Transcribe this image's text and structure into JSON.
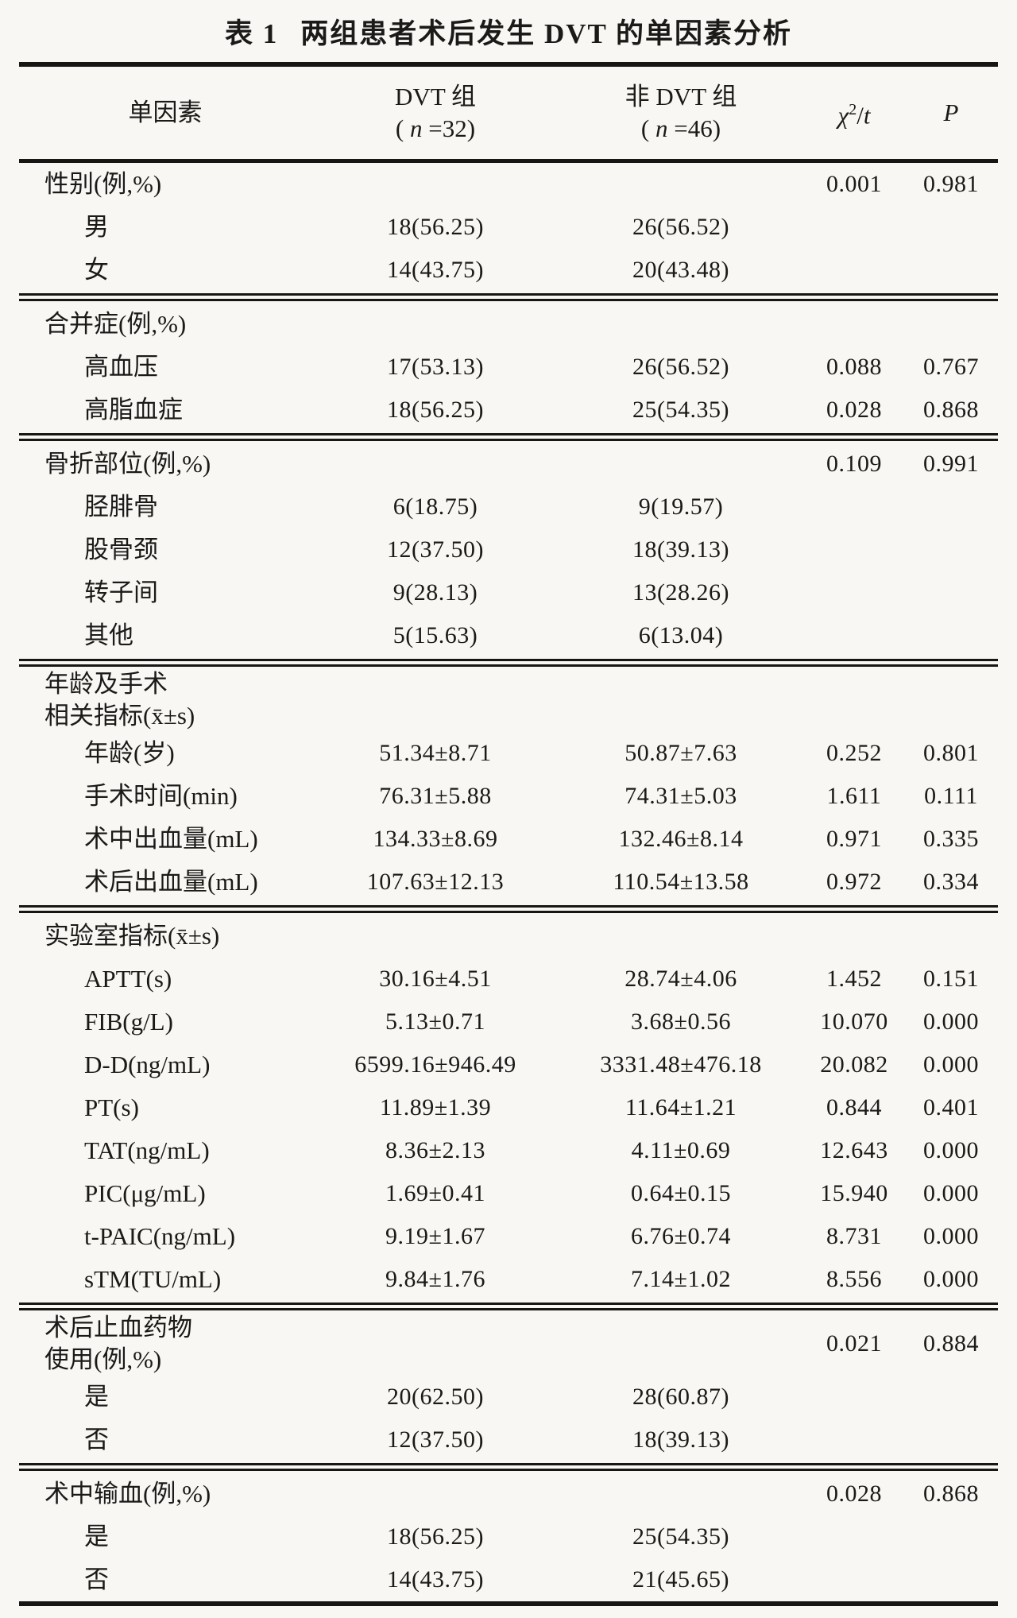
{
  "document": {
    "background": "#f8f7f4",
    "text_color": "#1b1a18",
    "rule_color": "#171614"
  },
  "table": {
    "title": {
      "tag": "表 1",
      "text": "两组患者术后发生 DVT 的单因素分析"
    },
    "header": {
      "factor": "单因素",
      "dvt_group": {
        "line1": "DVT 组",
        "sub": [
          "( ",
          "n",
          " =32)"
        ]
      },
      "non_dvt_group": {
        "line1": "非 DVT 组",
        "sub": [
          "( ",
          "n",
          " =46)"
        ]
      },
      "stat": {
        "chi": "χ",
        "sup": "2",
        "slash": "/",
        "t": "t"
      },
      "p": "P"
    },
    "sections": [
      {
        "rows": [
          {
            "label": "性别(例,%)",
            "stat": "0.001",
            "p": "0.981"
          },
          {
            "label": "男",
            "indent": true,
            "dvt": "18(56.25)",
            "non": "26(56.52)"
          },
          {
            "label": "女",
            "indent": true,
            "dvt": "14(43.75)",
            "non": "20(43.48)"
          }
        ]
      },
      {
        "rows": [
          {
            "label": "合并症(例,%)"
          },
          {
            "label": "高血压",
            "indent": true,
            "dvt": "17(53.13)",
            "non": "26(56.52)",
            "stat": "0.088",
            "p": "0.767"
          },
          {
            "label": "高脂血症",
            "indent": true,
            "dvt": "18(56.25)",
            "non": "25(54.35)",
            "stat": "0.028",
            "p": "0.868"
          }
        ]
      },
      {
        "rows": [
          {
            "label": "骨折部位(例,%)",
            "stat": "0.109",
            "p": "0.991"
          },
          {
            "label": "胫腓骨",
            "indent": true,
            "dvt": "6(18.75)",
            "non": "9(19.57)"
          },
          {
            "label": "股骨颈",
            "indent": true,
            "dvt": "12(37.50)",
            "non": "18(39.13)"
          },
          {
            "label": "转子间",
            "indent": true,
            "dvt": "9(28.13)",
            "non": "13(28.26)"
          },
          {
            "label": "其他",
            "indent": true,
            "dvt": "5(15.63)",
            "non": "6(13.04)"
          }
        ]
      },
      {
        "rows": [
          {
            "label": "年龄及手术\n相关指标(x̄±s)"
          },
          {
            "label": "年龄(岁)",
            "indent": true,
            "dvt": "51.34±8.71",
            "non": "50.87±7.63",
            "stat": "0.252",
            "p": "0.801"
          },
          {
            "label": "手术时间(min)",
            "indent": true,
            "dvt": "76.31±5.88",
            "non": "74.31±5.03",
            "stat": "1.611",
            "p": "0.111"
          },
          {
            "label": "术中出血量(mL)",
            "indent": true,
            "dvt": "134.33±8.69",
            "non": "132.46±8.14",
            "stat": "0.971",
            "p": "0.335"
          },
          {
            "label": "术后出血量(mL)",
            "indent": true,
            "dvt": "107.63±12.13",
            "non": "110.54±13.58",
            "stat": "0.972",
            "p": "0.334"
          }
        ]
      },
      {
        "rows": [
          {
            "label": "实验室指标(x̄±s)"
          },
          {
            "label": "APTT(s)",
            "indent": true,
            "dvt": "30.16±4.51",
            "non": "28.74±4.06",
            "stat": "1.452",
            "p": "0.151"
          },
          {
            "label": "FIB(g/L)",
            "indent": true,
            "dvt": "5.13±0.71",
            "non": "3.68±0.56",
            "stat": "10.070",
            "p": "0.000"
          },
          {
            "label": "D-D(ng/mL)",
            "indent": true,
            "dvt": "6599.16±946.49",
            "non": "3331.48±476.18",
            "stat": "20.082",
            "p": "0.000"
          },
          {
            "label": "PT(s)",
            "indent": true,
            "dvt": "11.89±1.39",
            "non": "11.64±1.21",
            "stat": "0.844",
            "p": "0.401"
          },
          {
            "label": "TAT(ng/mL)",
            "indent": true,
            "dvt": "8.36±2.13",
            "non": "4.11±0.69",
            "stat": "12.643",
            "p": "0.000"
          },
          {
            "label": "PIC(μg/mL)",
            "indent": true,
            "dvt": "1.69±0.41",
            "non": "0.64±0.15",
            "stat": "15.940",
            "p": "0.000"
          },
          {
            "label": "t-PAIC(ng/mL)",
            "indent": true,
            "dvt": "9.19±1.67",
            "non": "6.76±0.74",
            "stat": "8.731",
            "p": "0.000"
          },
          {
            "label": "sTM(TU/mL)",
            "indent": true,
            "dvt": "9.84±1.76",
            "non": "7.14±1.02",
            "stat": "8.556",
            "p": "0.000"
          }
        ]
      },
      {
        "rows": [
          {
            "label": "术后止血药物\n使用(例,%)",
            "stat": "0.021",
            "p": "0.884"
          },
          {
            "label": "是",
            "indent": true,
            "dvt": "20(62.50)",
            "non": "28(60.87)"
          },
          {
            "label": "否",
            "indent": true,
            "dvt": "12(37.50)",
            "non": "18(39.13)"
          }
        ]
      },
      {
        "rows": [
          {
            "label": "术中输血(例,%)",
            "stat": "0.028",
            "p": "0.868"
          },
          {
            "label": "是",
            "indent": true,
            "dvt": "18(56.25)",
            "non": "25(54.35)"
          },
          {
            "label": "否",
            "indent": true,
            "dvt": "14(43.75)",
            "non": "21(45.65)"
          }
        ]
      }
    ]
  }
}
